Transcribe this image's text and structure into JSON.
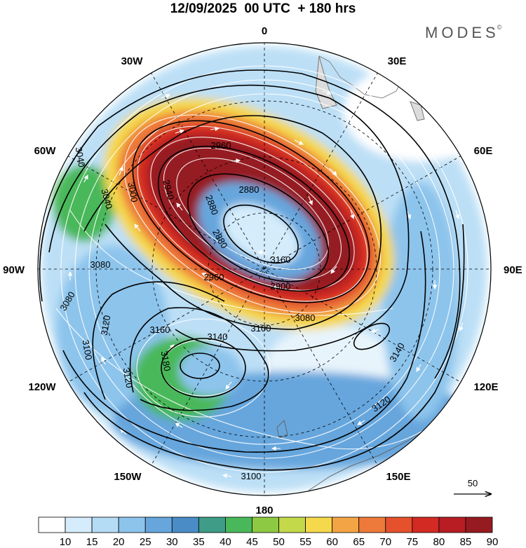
{
  "header": {
    "title": "12/09/2025  00 UTC  + 180 hrs",
    "brand": "MODES"
  },
  "longitude_labels": [
    {
      "id": "0",
      "text": "0"
    },
    {
      "id": "30e",
      "text": "30E"
    },
    {
      "id": "60e",
      "text": "60E"
    },
    {
      "id": "90e",
      "text": "90E"
    },
    {
      "id": "120e",
      "text": "120E"
    },
    {
      "id": "150e",
      "text": "150E"
    },
    {
      "id": "180",
      "text": "180"
    },
    {
      "id": "150w",
      "text": "150W"
    },
    {
      "id": "120w",
      "text": "120W"
    },
    {
      "id": "90w",
      "text": "90W"
    },
    {
      "id": "60w",
      "text": "60W"
    },
    {
      "id": "30w",
      "text": "30W"
    }
  ],
  "contour_labels": [
    "2880",
    "2880",
    "2880",
    "2900",
    "2940",
    "2960",
    "2960",
    "3000",
    "3040",
    "3040",
    "3080",
    "3080",
    "3080",
    "3100",
    "3100",
    "3100",
    "3120",
    "3120",
    "3120",
    "3140",
    "3140",
    "3160",
    "3160",
    "3180"
  ],
  "wind_reference": {
    "label": "50"
  },
  "colorbar": {
    "colors": [
      "#ffffff",
      "#d4ecfb",
      "#b5dcf5",
      "#8dc4ec",
      "#66a6dd",
      "#4a8cc6",
      "#3e9c87",
      "#48b85a",
      "#8ec943",
      "#c3d94a",
      "#f5d84c",
      "#f3a545",
      "#ed7a3a",
      "#e5512c",
      "#d42a24",
      "#b81d24",
      "#951b20"
    ],
    "labels": [
      "10",
      "15",
      "20",
      "25",
      "30",
      "35",
      "40",
      "45",
      "50",
      "55",
      "60",
      "65",
      "70",
      "75",
      "80",
      "85",
      "90"
    ]
  }
}
